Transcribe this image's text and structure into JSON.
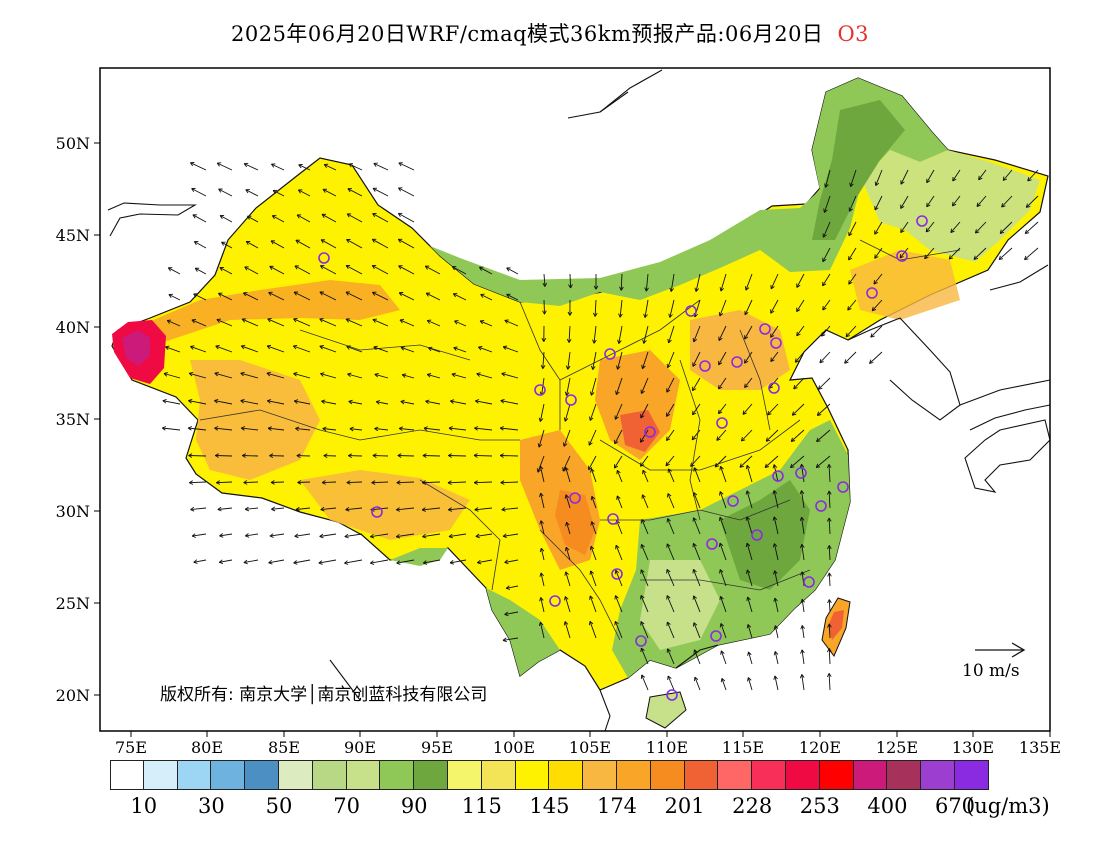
{
  "title": {
    "main": "2025年06月20日WRF/cmaq模式36km预报产品:06月20日",
    "species": "O3"
  },
  "map": {
    "lat_ticks": [
      "50N",
      "45N",
      "40N",
      "35N",
      "30N",
      "25N",
      "20N"
    ],
    "lon_ticks": [
      "75E",
      "80E",
      "85E",
      "90E",
      "95E",
      "100E",
      "105E",
      "110E",
      "115E",
      "120E",
      "125E",
      "130E",
      "135E"
    ],
    "copyright": "版权所有: 南京大学│南京创蓝科技有限公司",
    "wind_scale_label": "10  m/s"
  },
  "legend": {
    "colors": [
      "#ffffff",
      "#d6eefa",
      "#9dd6f4",
      "#6eb2e0",
      "#4c8fc3",
      "#dcebc0",
      "#b9d885",
      "#c7e08a",
      "#8fc856",
      "#6ea73e",
      "#f4f56a",
      "#f3e356",
      "#fff200",
      "#ffdd00",
      "#f8b741",
      "#f8a528",
      "#f68b1f",
      "#f06234",
      "#ff6666",
      "#f72f59",
      "#ef0a44",
      "#ff0000",
      "#cc1a7a",
      "#a6325c",
      "#9c3fd0",
      "#8a2be2"
    ],
    "labels": [
      "10",
      "30",
      "50",
      "70",
      "90",
      "115",
      "145",
      "174",
      "201",
      "228",
      "253",
      "400",
      "670"
    ],
    "unit": "(ug/m3)"
  }
}
